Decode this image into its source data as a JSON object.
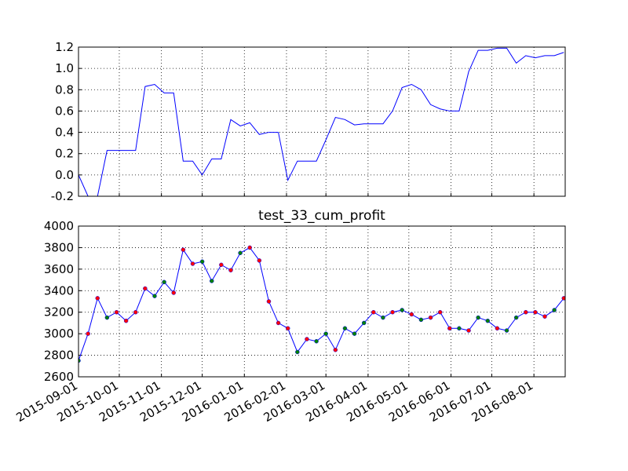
{
  "chart_data": [
    {
      "type": "line",
      "grid": true,
      "show_xtick_labels": false,
      "x": [
        "2015-09-01",
        "2015-09-08",
        "2015-09-15",
        "2015-09-22",
        "2015-09-29",
        "2015-10-06",
        "2015-10-13",
        "2015-10-20",
        "2015-10-27",
        "2015-11-03",
        "2015-11-10",
        "2015-11-17",
        "2015-11-24",
        "2015-12-01",
        "2015-12-08",
        "2015-12-15",
        "2015-12-22",
        "2015-12-29",
        "2016-01-05",
        "2016-01-12",
        "2016-01-19",
        "2016-01-26",
        "2016-02-02",
        "2016-02-09",
        "2016-02-16",
        "2016-02-23",
        "2016-03-01",
        "2016-03-08",
        "2016-03-15",
        "2016-03-22",
        "2016-03-29",
        "2016-04-05",
        "2016-04-12",
        "2016-04-19",
        "2016-04-26",
        "2016-05-03",
        "2016-05-10",
        "2016-05-17",
        "2016-05-24",
        "2016-05-31",
        "2016-06-07",
        "2016-06-14",
        "2016-06-21",
        "2016-06-28",
        "2016-07-05",
        "2016-07-12",
        "2016-07-19",
        "2016-07-26",
        "2016-08-02",
        "2016-08-09",
        "2016-08-16",
        "2016-08-23"
      ],
      "series": [
        {
          "color": "#0000ff",
          "values": [
            0.0,
            -0.2,
            -0.2,
            0.23,
            0.23,
            0.23,
            0.23,
            0.83,
            0.85,
            0.77,
            0.77,
            0.13,
            0.13,
            0.0,
            0.15,
            0.15,
            0.52,
            0.46,
            0.49,
            0.38,
            0.4,
            0.4,
            -0.05,
            0.13,
            0.13,
            0.13,
            0.33,
            0.54,
            0.52,
            0.47,
            0.48,
            0.48,
            0.48,
            0.6,
            0.82,
            0.85,
            0.8,
            0.66,
            0.62,
            0.6,
            0.6,
            0.97,
            1.17,
            1.17,
            1.19,
            1.19,
            1.05,
            1.12,
            1.1,
            1.12,
            1.12,
            1.15
          ]
        }
      ],
      "xlim": [
        "2015-09-01",
        "2016-08-24"
      ],
      "xticks": [
        "2015-09-01",
        "2015-10-01",
        "2015-11-01",
        "2015-12-01",
        "2016-01-01",
        "2016-02-01",
        "2016-03-01",
        "2016-04-01",
        "2016-05-01",
        "2016-06-01",
        "2016-07-01",
        "2016-08-01"
      ],
      "ylim": [
        -0.2,
        1.2
      ],
      "yticks": [
        -0.2,
        {
          "value": 0,
          "label": "0.0"
        },
        0.2,
        0.4,
        0.6,
        0.8,
        {
          "value": 1,
          "label": "1.0"
        },
        1.2
      ]
    },
    {
      "type": "line",
      "grid": true,
      "show_xtick_labels": true,
      "title": "test_33_cum_profit",
      "x": [
        "2015-09-01",
        "2015-09-08",
        "2015-09-15",
        "2015-09-22",
        "2015-09-29",
        "2015-10-06",
        "2015-10-13",
        "2015-10-20",
        "2015-10-27",
        "2015-11-03",
        "2015-11-10",
        "2015-11-17",
        "2015-11-24",
        "2015-12-01",
        "2015-12-08",
        "2015-12-15",
        "2015-12-22",
        "2015-12-29",
        "2016-01-05",
        "2016-01-12",
        "2016-01-19",
        "2016-01-26",
        "2016-02-02",
        "2016-02-09",
        "2016-02-16",
        "2016-02-23",
        "2016-03-01",
        "2016-03-08",
        "2016-03-15",
        "2016-03-22",
        "2016-03-29",
        "2016-04-05",
        "2016-04-12",
        "2016-04-19",
        "2016-04-26",
        "2016-05-03",
        "2016-05-10",
        "2016-05-17",
        "2016-05-24",
        "2016-05-31",
        "2016-06-07",
        "2016-06-14",
        "2016-06-21",
        "2016-06-28",
        "2016-07-05",
        "2016-07-12",
        "2016-07-19",
        "2016-07-26",
        "2016-08-02",
        "2016-08-09",
        "2016-08-16",
        "2016-08-23"
      ],
      "series": [
        {
          "color": "#0000ff",
          "values": [
            2750,
            3000,
            3330,
            3150,
            3200,
            3120,
            3200,
            3420,
            3350,
            3480,
            3380,
            3780,
            3650,
            3670,
            3490,
            3640,
            3590,
            3750,
            3800,
            3680,
            3300,
            3100,
            3050,
            2830,
            2950,
            2930,
            3000,
            2850,
            3050,
            3000,
            3100,
            3200,
            3150,
            3200,
            3220,
            3180,
            3130,
            3150,
            3200,
            3050,
            3050,
            3030,
            3150,
            3120,
            3050,
            3030,
            3150,
            3200,
            3200,
            3160,
            3220,
            3330
          ],
          "marker_colors": [
            "#008000",
            "#ff0000",
            "#ff0000",
            "#008000",
            "#ff0000",
            "#ff0000",
            "#ff0000",
            "#ff0000",
            "#008000",
            "#008000",
            "#ff0000",
            "#ff0000",
            "#ff0000",
            "#008000",
            "#008000",
            "#ff0000",
            "#ff0000",
            "#008000",
            "#ff0000",
            "#ff0000",
            "#ff0000",
            "#ff0000",
            "#ff0000",
            "#008000",
            "#ff0000",
            "#008000",
            "#008000",
            "#ff0000",
            "#008000",
            "#008000",
            "#008000",
            "#ff0000",
            "#008000",
            "#ff0000",
            "#008000",
            "#ff0000",
            "#008000",
            "#ff0000",
            "#ff0000",
            "#ff0000",
            "#008000",
            "#ff0000",
            "#008000",
            "#008000",
            "#ff0000",
            "#008000",
            "#008000",
            "#ff0000",
            "#ff0000",
            "#ff0000",
            "#008000",
            "#ff0000"
          ]
        }
      ],
      "xlim": [
        "2015-09-01",
        "2016-08-24"
      ],
      "xticks": [
        "2015-09-01",
        "2015-10-01",
        "2015-11-01",
        "2015-12-01",
        "2016-01-01",
        "2016-02-01",
        "2016-03-01",
        "2016-04-01",
        "2016-05-01",
        "2016-06-01",
        "2016-07-01",
        "2016-08-01"
      ],
      "ylim": [
        2600,
        4000
      ],
      "yticks": [
        2600,
        2800,
        3000,
        3200,
        3400,
        3600,
        3800,
        4000
      ]
    }
  ]
}
